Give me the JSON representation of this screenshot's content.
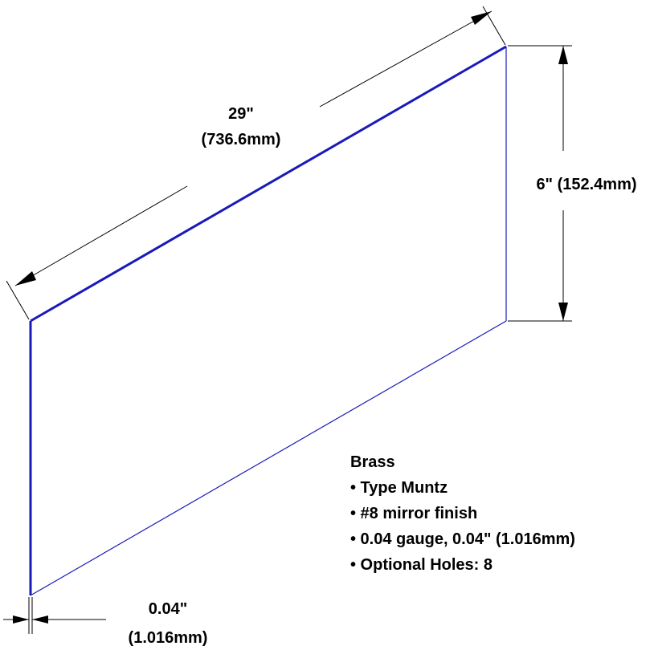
{
  "dimensions": {
    "length_value": "29\"",
    "length_metric": "(736.6mm)",
    "height_label": "6\" (152.4mm)",
    "thickness_value": "0.04\"",
    "thickness_metric": "(1.016mm)"
  },
  "specs": {
    "material": "Brass",
    "items": [
      "• Type Muntz",
      "• #8 mirror finish",
      "• 0.04 gauge, 0.04\" (1.016mm)",
      "• Optional Holes: 8"
    ]
  },
  "colors": {
    "sheet_edge": "#1a1ab8",
    "dimension": "#000000"
  }
}
